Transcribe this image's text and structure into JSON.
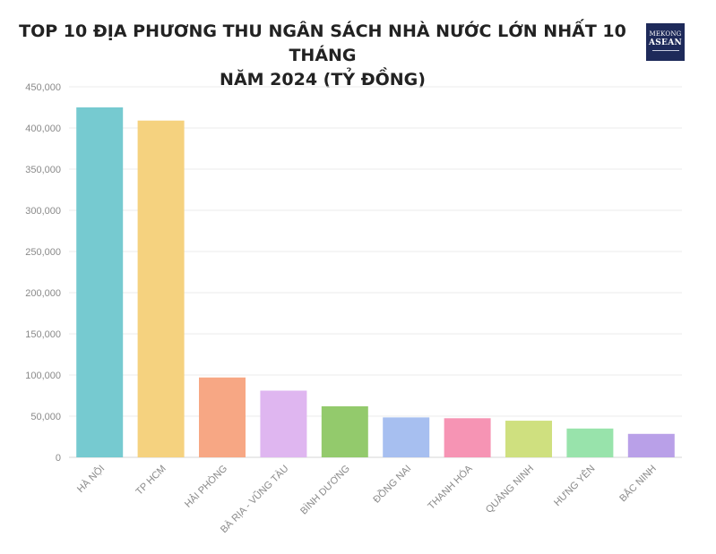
{
  "header": {
    "title_line1": "TOP 10 ĐỊA PHƯƠNG THU NGÂN SÁCH NHÀ NƯỚC LỚN NHẤT 10 THÁNG",
    "title_line2": "NĂM 2024 (TỶ ĐỒNG)"
  },
  "logo": {
    "line1": "MEKONG",
    "line2": "ASEAN"
  },
  "chart_data": {
    "type": "bar",
    "title": "TOP 10 ĐỊA PHƯƠNG THU NGÂN SÁCH NHÀ NƯỚC LỚN NHẤT 10 THÁNG NĂM 2024 (TỶ ĐỒNG)",
    "categories": [
      "HÀ NỘI",
      "TP HCM",
      "HẢI PHÒNG",
      "BÀ RỊA - VŨNG TÀU",
      "BÌNH DƯƠNG",
      "ĐỒNG NAI",
      "THANH HÓA",
      "QUẢNG NINH",
      "HƯNG YÊN",
      "BẮC NINH"
    ],
    "values": [
      425000,
      409000,
      97000,
      81000,
      62000,
      48500,
      47500,
      44500,
      35000,
      28500
    ],
    "colors": [
      "#76cad0",
      "#f5d27f",
      "#f7a784",
      "#dfb6f0",
      "#93ca6c",
      "#a7bff0",
      "#f694b4",
      "#cfe07f",
      "#98e3ab",
      "#b9a0e8"
    ],
    "y_ticks": [
      "0",
      "50,000",
      "100,000",
      "150,000",
      "200,000",
      "250,000",
      "300,000",
      "350,000",
      "400,000",
      "450,000"
    ],
    "ylim": [
      0,
      450000
    ],
    "xlabel": "",
    "ylabel": "",
    "grid": true,
    "legend": "none"
  }
}
